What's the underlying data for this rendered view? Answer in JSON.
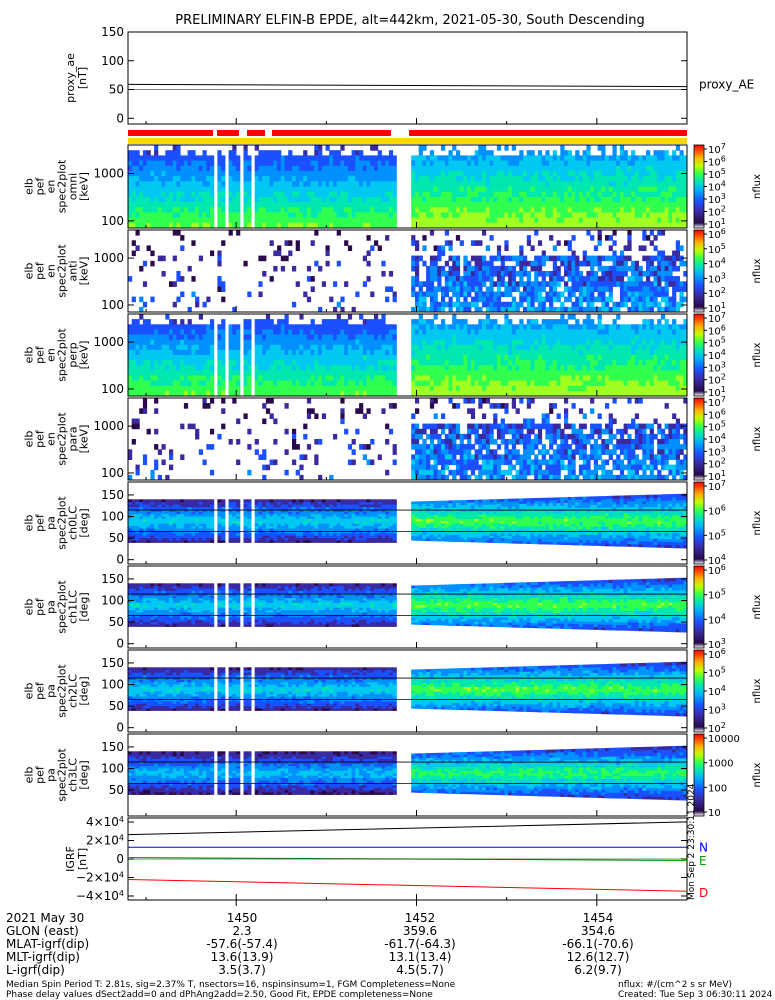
{
  "title": "PRELIMINARY ELFIN-B EPDE, alt=442km, 2021-05-30, South Descending",
  "side_text": "Mon Sep  2 23:30:11 2024",
  "footer": {
    "left1": "Median Spin Period T: 2.81s, sig=2.37% T, nsectors=16, nspinsinsum=1, FGM Completeness=None",
    "left2": "Phase delay values dSect2add=0 and dPhAng2add=2.50, Good Fit, EPDE completeness=None",
    "right1": "nflux: #/(cm^2 s sr MeV)",
    "right2": "Created: Tue Sep  3 06:30:11 2024"
  },
  "bottom_info": {
    "row_labels": [
      "2021 May 30",
      "GLON (east)",
      "MLAT-igrf(dip)",
      "MLT-igrf(dip)",
      "L-igrf(dip)"
    ],
    "columns": [
      {
        "time": "1450",
        "glon": "2.3",
        "mlat": "-57.6(-57.4)",
        "mlt": "13.6(13.9)",
        "l": "3.5(3.7)"
      },
      {
        "time": "1452",
        "glon": "359.6",
        "mlat": "-61.7(-64.3)",
        "mlt": "13.1(13.4)",
        "l": "4.5(5.7)"
      },
      {
        "time": "1454",
        "glon": "354.6",
        "mlat": "-66.1(-70.6)",
        "mlt": "12.6(12.7)",
        "l": "6.2(9.7)"
      }
    ]
  },
  "colors": {
    "status_red": "#ff0000",
    "status_yellow": "#ffd700",
    "igrf_n": "#0000ff",
    "igrf_e": "#00a000",
    "igrf_d": "#ff0000"
  },
  "chart_data": [
    {
      "type": "line",
      "ylabel": [
        "proxy_ae",
        "[nT]"
      ],
      "yticks": [
        "150",
        "100",
        "50",
        "0"
      ],
      "ylim": [
        -10,
        150
      ],
      "series": [
        {
          "name": "proxy_AE",
          "x": [
            "1448.8",
            "1455.0"
          ],
          "values": [
            59,
            55
          ]
        }
      ]
    },
    {
      "type": "heatmap",
      "ylabel": [
        "elb",
        "pef",
        "en",
        "spec2plot",
        "omni",
        "[keV]"
      ],
      "yticks": [
        "1000",
        "100"
      ],
      "yscale": "log",
      "cbar_ticks": [
        "10^7",
        "10^6",
        "10^5",
        "10^4",
        "10^3",
        "10^2",
        "10^1"
      ],
      "cbar_label": "nflux"
    },
    {
      "type": "heatmap",
      "ylabel": [
        "elb",
        "pef",
        "en",
        "spec2plot",
        "anti",
        "[keV]"
      ],
      "yticks": [
        "1000",
        "100"
      ],
      "yscale": "log",
      "cbar_ticks": [
        "10^6",
        "10^5",
        "10^4",
        "10^3",
        "10^2",
        "10^1"
      ],
      "cbar_label": "nflux"
    },
    {
      "type": "heatmap",
      "ylabel": [
        "elb",
        "pef",
        "en",
        "spec2plot",
        "perp",
        "[keV]"
      ],
      "yticks": [
        "1000",
        "100"
      ],
      "yscale": "log",
      "cbar_ticks": [
        "10^7",
        "10^6",
        "10^5",
        "10^4",
        "10^3",
        "10^2",
        "10^1"
      ],
      "cbar_label": "nflux"
    },
    {
      "type": "heatmap",
      "ylabel": [
        "elb",
        "pef",
        "en",
        "spec2plot",
        "para",
        "[keV]"
      ],
      "yticks": [
        "1000",
        "100"
      ],
      "yscale": "log",
      "cbar_ticks": [
        "10^7",
        "10^6",
        "10^5",
        "10^4",
        "10^3",
        "10^2",
        "10^1"
      ],
      "cbar_label": "nflux"
    },
    {
      "type": "heatmap",
      "ylabel": [
        "elb",
        "pef",
        "pa",
        "spec2plot",
        "ch0LC",
        "[deg]"
      ],
      "yticks": [
        "150",
        "100",
        "50",
        "0"
      ],
      "cbar_ticks": [
        "10^7",
        "10^6",
        "10^5",
        "10^4"
      ],
      "cbar_label": "nflux"
    },
    {
      "type": "heatmap",
      "ylabel": [
        "elb",
        "pef",
        "pa",
        "spec2plot",
        "ch1LC",
        "[deg]"
      ],
      "yticks": [
        "150",
        "100",
        "50",
        "0"
      ],
      "cbar_ticks": [
        "10^6",
        "10^5",
        "10^4",
        "10^3"
      ],
      "cbar_label": "nflux"
    },
    {
      "type": "heatmap",
      "ylabel": [
        "elb",
        "pef",
        "pa",
        "spec2plot",
        "ch2LC",
        "[deg]"
      ],
      "yticks": [
        "150",
        "100",
        "50",
        "0"
      ],
      "cbar_ticks": [
        "10^6",
        "10^5",
        "10^4",
        "10^3",
        "10^2"
      ],
      "cbar_label": "nflux"
    },
    {
      "type": "heatmap",
      "ylabel": [
        "elb",
        "pef",
        "pa",
        "spec2plot",
        "ch3LC",
        "[deg]"
      ],
      "yticks": [
        "150",
        "100",
        "50"
      ],
      "cbar_ticks": [
        "10000",
        "1000",
        "100",
        "10"
      ],
      "cbar_label": "nflux"
    },
    {
      "type": "line",
      "ylabel": [
        "IGRF",
        "[nT]"
      ],
      "yticks": [
        "4×10^4",
        "2×10^4",
        "0",
        "−2×10^4",
        "−4×10^4"
      ],
      "ylim": [
        -42000,
        42000
      ],
      "series": [
        {
          "name": "N",
          "x": [
            "1448.8",
            "1455.0"
          ],
          "values": [
            12000,
            12000
          ]
        },
        {
          "name": "E",
          "x": [
            "1448.8",
            "1455.0"
          ],
          "values": [
            1500,
            -1500
          ]
        },
        {
          "name": "D",
          "x": [
            "1448.8",
            "1455.0"
          ],
          "values": [
            -21000,
            -33000
          ]
        },
        {
          "x": [
            "1448.8",
            "1455.0"
          ],
          "values": [
            25000,
            38000
          ]
        }
      ]
    }
  ]
}
